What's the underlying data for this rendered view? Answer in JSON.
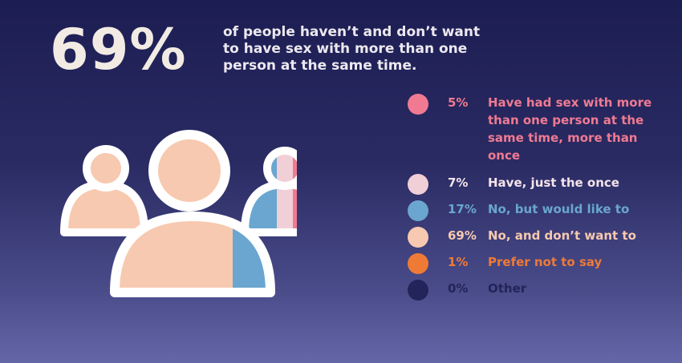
{
  "headline_stat": "69%",
  "headline_text": "of people haven’t and don’t want to have sex with more than one person at the same time.",
  "legend": [
    {
      "pct": "5%",
      "label": "Have had sex with more than one person at the same time, more than once",
      "color": "#f07a92"
    },
    {
      "pct": "7%",
      "label": "Have, just the once",
      "color": "#f1cfd6"
    },
    {
      "pct": "17%",
      "label": "No, but would like to",
      "color": "#6aa6cf"
    },
    {
      "pct": "69%",
      "label": "No, and don’t want to",
      "color": "#f7c9b0"
    },
    {
      "pct": "1%",
      "label": "Prefer not to say",
      "color": "#ef7a36"
    },
    {
      "pct": "0%",
      "label": "Other",
      "color": "#23245a"
    }
  ],
  "text_colors": [
    "#f07a92",
    "#f4e4ea",
    "#6aa6cf",
    "#f7c9b0",
    "#ef7a36",
    "#23245a"
  ],
  "chart_data": {
    "type": "bar",
    "categories": [
      "Have had sex with more than one person at the same time, more than once",
      "Have, just the once",
      "No, but would like to",
      "No, and don’t want to",
      "Prefer not to say",
      "Other"
    ],
    "values": [
      5,
      7,
      17,
      69,
      1,
      0
    ]
  }
}
